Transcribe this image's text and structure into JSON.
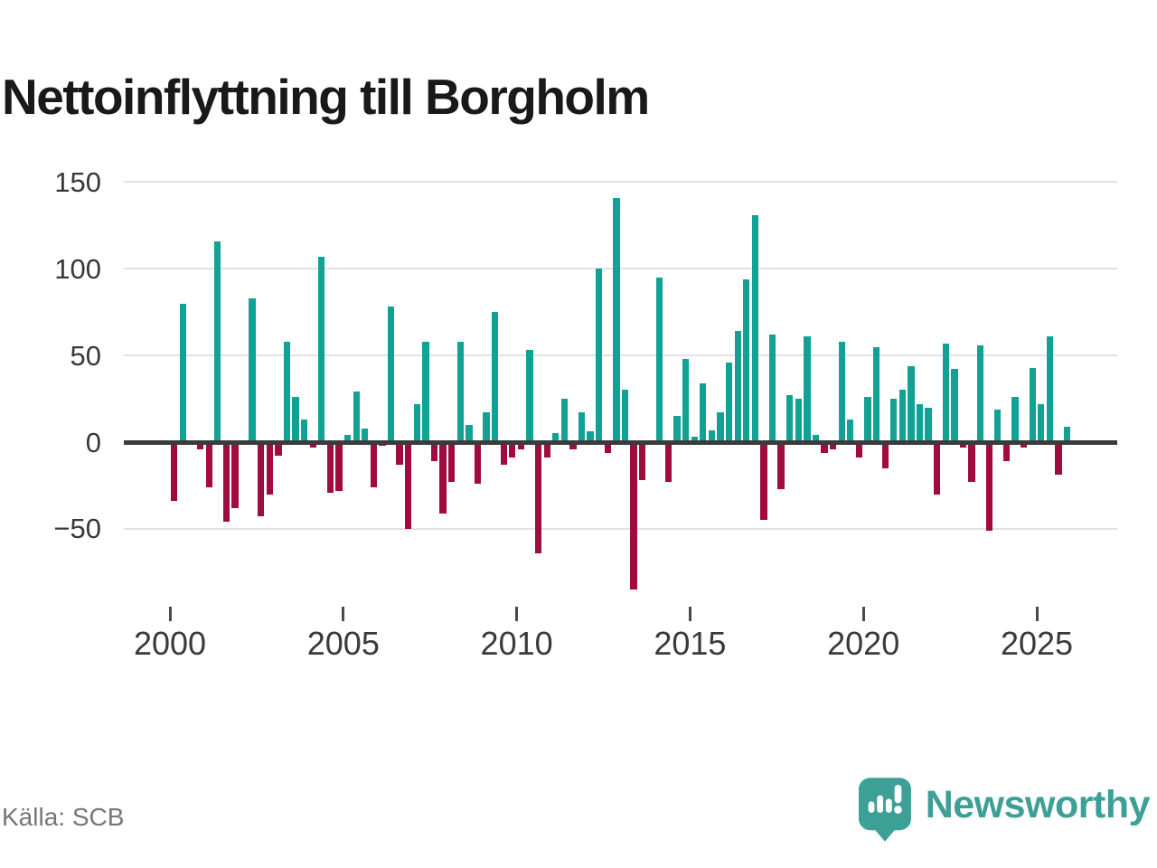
{
  "title": "Nettoinflyttning till Borgholm",
  "source": "Källa: SCB",
  "logo": {
    "text": "Newsworthy",
    "icon": "newsworthy-bubble-barchart-icon"
  },
  "colors": {
    "positive": "#12a195",
    "negative": "#a00c3f",
    "grid": "#e2e2e2",
    "zero_axis": "#3b3b3b",
    "tick_label": "#3a3a3a",
    "y_label": "#383838",
    "title": "#191919",
    "source": "#767676",
    "logo": "#3da096",
    "background": "#ffffff"
  },
  "chart_data": {
    "type": "bar",
    "title": "Nettoinflyttning till Borgholm",
    "xlabel": "",
    "ylabel": "",
    "frequency": "quarterly",
    "start_period": "2000-Q1",
    "end_period": "2025-Q4",
    "x_tick_labels": [
      "2000",
      "2005",
      "2010",
      "2015",
      "2020",
      "2025"
    ],
    "y_ticks": [
      150,
      100,
      50,
      0,
      -50
    ],
    "ylim": [
      -95,
      155
    ],
    "grid": "horizontal",
    "legend": "none",
    "series": [
      {
        "name": "Nettoinflyttning",
        "values": [
          -34,
          80,
          0,
          -4,
          -26,
          116,
          -46,
          -38,
          0,
          83,
          -43,
          -30,
          -8,
          58,
          26,
          13,
          -3,
          107,
          -29,
          -28,
          4,
          29,
          8,
          -26,
          -2,
          78,
          -13,
          -50,
          22,
          58,
          -11,
          -41,
          -23,
          58,
          10,
          -24,
          17,
          75,
          -13,
          -9,
          -4,
          53,
          -64,
          -9,
          5,
          25,
          -4,
          17,
          6,
          100,
          -6,
          141,
          30,
          -85,
          -22,
          0,
          95,
          -23,
          15,
          48,
          3,
          34,
          7,
          17,
          46,
          64,
          94,
          131,
          -45,
          62,
          -27,
          27,
          25,
          61,
          4,
          -6,
          -4,
          58,
          13,
          -9,
          26,
          55,
          -15,
          25,
          30,
          44,
          22,
          20,
          -30,
          57,
          42,
          -3,
          -23,
          56,
          -51,
          19,
          -11,
          26,
          -3,
          43,
          22,
          61,
          -19,
          9
        ]
      }
    ]
  }
}
